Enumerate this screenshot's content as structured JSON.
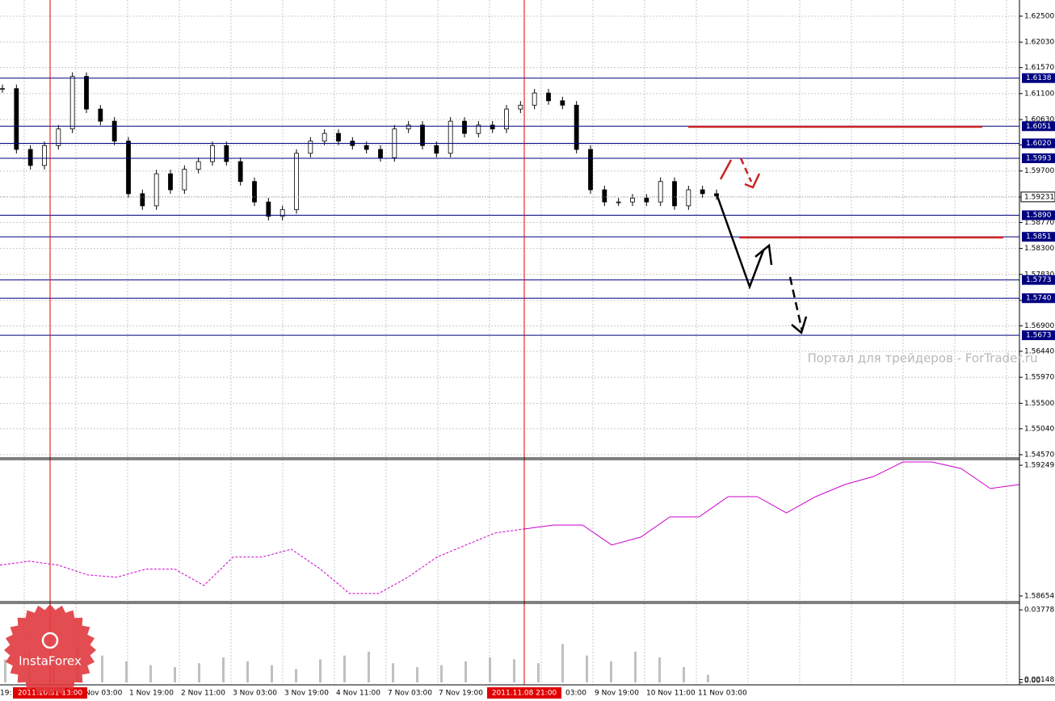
{
  "chart_data": {
    "type": "candlestick",
    "price": {
      "ylim": [
        1.54512,
        1.62792
      ],
      "yticks": [
        {
          "value": 1.625,
          "label": "1.62500"
        },
        {
          "value": 1.6203,
          "label": "1.62030"
        },
        {
          "value": 1.6157,
          "label": "1.61570"
        },
        {
          "value": 1.611,
          "label": "1.61100"
        },
        {
          "value": 1.6063,
          "label": "1.60630"
        },
        {
          "value": 1.6017,
          "label": "1.60170"
        },
        {
          "value": 1.597,
          "label": "1.59700"
        },
        {
          "value": 1.5923,
          "label": "1.59230"
        },
        {
          "value": 1.5877,
          "label": "1.58770"
        },
        {
          "value": 1.583,
          "label": "1.58300"
        },
        {
          "value": 1.5783,
          "label": "1.57830"
        },
        {
          "value": 1.5736,
          "label": "1.57360"
        },
        {
          "value": 1.569,
          "label": "1.56900"
        },
        {
          "value": 1.5644,
          "label": "1.56440"
        },
        {
          "value": 1.5597,
          "label": "1.55970"
        },
        {
          "value": 1.555,
          "label": "1.55500"
        },
        {
          "value": 1.5504,
          "label": "1.55040"
        },
        {
          "value": 1.5457,
          "label": "1.54570"
        }
      ],
      "closes": [
        1.6119,
        1.6009,
        1.598,
        1.6016,
        1.6046,
        1.6141,
        1.6082,
        1.606,
        1.6024,
        1.5929,
        1.5907,
        1.5965,
        1.5936,
        1.5973,
        1.5987,
        1.6016,
        1.5987,
        1.5951,
        1.5914,
        1.5888,
        1.59,
        1.6002,
        1.6024,
        1.6038,
        1.6024,
        1.6016,
        1.6009,
        1.5994,
        1.6046,
        1.6053,
        1.6016,
        1.6002,
        1.606,
        1.6038,
        1.6053,
        1.6046,
        1.6082,
        1.6089,
        1.6111,
        1.6097,
        1.6089,
        1.6009,
        1.5936,
        1.5914,
        1.5914,
        1.5921,
        1.5914,
        1.5951,
        1.5907,
        1.5936,
        1.5929,
        1.5925
      ],
      "levels": [
        1.6138,
        1.6051,
        {
          "value": 1.602,
          "label": "1.6020"
        },
        1.5993,
        {
          "value": 1.589,
          "label": "1.5890"
        },
        1.5851,
        1.5773,
        {
          "value": 1.574,
          "label": "1.5740"
        },
        1.5673
      ],
      "current": 1.59231,
      "level_color": "#000080"
    },
    "indicator": {
      "ylim": [
        1.58628,
        1.59275
      ],
      "yticks": [
        1.59249,
        1.58654
      ],
      "color": "#cc00cc",
      "values": [
        1.58794,
        1.58812,
        1.58794,
        1.5875,
        1.58739,
        1.58776,
        1.58776,
        1.58702,
        1.58831,
        1.58831,
        1.58867,
        1.58776,
        1.58665,
        1.58665,
        1.58739,
        1.58831,
        1.58886,
        1.58941,
        1.58959,
        1.58977,
        1.58977,
        1.58886,
        1.58922,
        1.59014,
        1.59014,
        1.59106,
        1.59106,
        1.59032,
        1.59106,
        1.59161,
        1.59198,
        1.59264,
        1.59264,
        1.59234,
        1.59143,
        1.59161
      ]
    },
    "volume": {
      "ylim": [
        0,
        0.04121
      ],
      "yticks": [
        0.03778,
        0.00148,
        {
          "value": 0,
          "label": "0.00"
        }
      ],
      "color": "#c0c0c0",
      "values": [
        0.012,
        0.015,
        0.01,
        0.018,
        0.014,
        0.011,
        0.009,
        0.008,
        0.01,
        0.013,
        0.011,
        0.009,
        0.007,
        0.012,
        0.014,
        0.016,
        0.01,
        0.008,
        0.009,
        0.011,
        0.013,
        0.012,
        0.01,
        0.02,
        0.014,
        0.011,
        0.016,
        0.013,
        0.008,
        0.004
      ]
    },
    "time_labels": [
      "19:",
      "Nov 03:00",
      "1 Nov 19:00",
      "2 Nov 11:00",
      "3 Nov 03:00",
      "3 Nov 19:00",
      "4 Nov 11:00",
      "7 Nov 03:00",
      "7 Nov 19:00",
      "03:00",
      "9 Nov 19:00",
      "10 Nov 11:00",
      "11 Nov 03:00"
    ],
    "markers": [
      "2011.10.31 13:00",
      "2011.11.08 21:00"
    ],
    "marker_color": "#e00000",
    "watermark": "Портал для трейдеров - ForTrader.ru",
    "logo": "InstaForex"
  }
}
